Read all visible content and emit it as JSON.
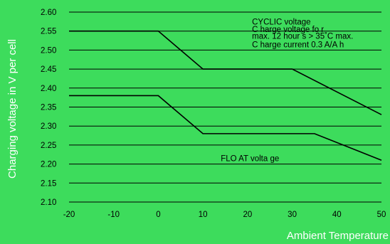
{
  "chart_data": {
    "type": "line",
    "xlabel": "Ambient Temperature",
    "ylabel": "Charging voltage in V per cell",
    "xlim": [
      -20,
      50
    ],
    "ylim": [
      2.1,
      2.6
    ],
    "x_ticks": [
      "-20",
      "-10",
      "0",
      "10",
      "20",
      "30",
      "40",
      "50"
    ],
    "y_ticks": [
      "2.60",
      "2.55",
      "2.50",
      "2.45",
      "2.40",
      "2.35",
      "2.30",
      "2.25",
      "2.20",
      "2.15",
      "2.10"
    ],
    "grid": "horizontal",
    "series": [
      {
        "x": [
          -20,
          0,
          10,
          30,
          50
        ],
        "y": [
          2.55,
          2.55,
          2.45,
          2.45,
          2.33
        ]
      },
      {
        "x": [
          -20,
          0,
          10,
          35,
          50
        ],
        "y": [
          2.38,
          2.38,
          2.28,
          2.28,
          2.21
        ]
      }
    ],
    "annotations": [
      {
        "text": "CYCLIC voltage",
        "x": 21,
        "y": 2.575
      },
      {
        "text": "C harge voltage fo   r",
        "x": 21,
        "y": 2.555
      },
      {
        "text": "max. 12 hour  s   > 35˚C max.",
        "x": 21,
        "y": 2.537
      },
      {
        "text": "C harge current 0.3 A/A       h",
        "x": 21,
        "y": 2.515
      },
      {
        "text": "FLO  AT  volta ge",
        "x": 14,
        "y": 2.215
      }
    ]
  }
}
